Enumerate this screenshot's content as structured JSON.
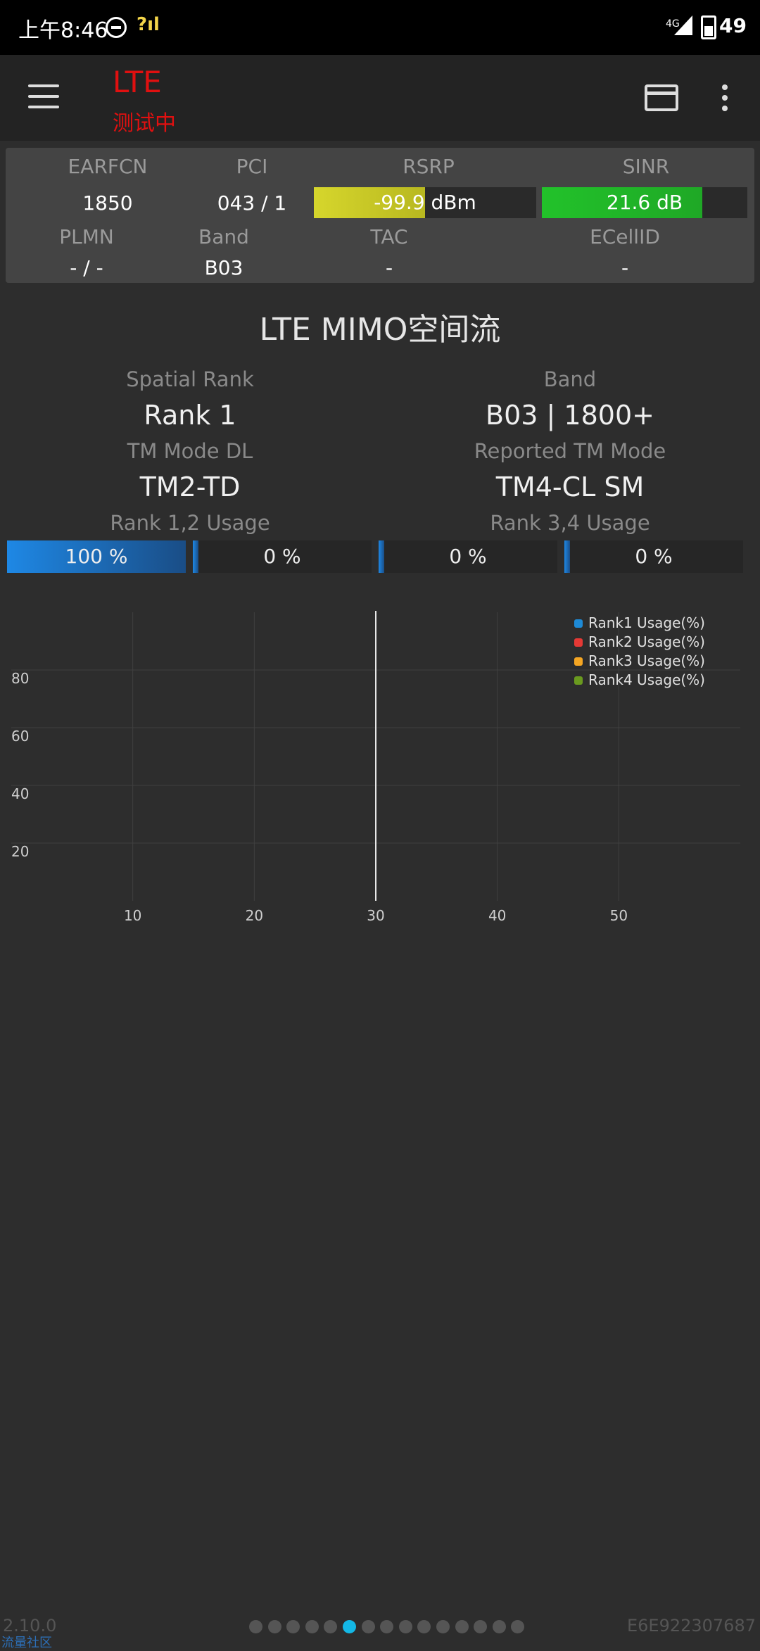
{
  "status_bar": {
    "time": "上午8:46",
    "signal_label": "?ıl",
    "network": "4G",
    "battery": "49"
  },
  "app_bar": {
    "title": "LTE",
    "subtitle": "测试中"
  },
  "info": {
    "earfcn_label": "EARFCN",
    "earfcn": "1850",
    "pci_label": "PCI",
    "pci": "043 / 1",
    "rsrp_label": "RSRP",
    "rsrp": "-99.9 dBm",
    "rsrp_level": 0.5,
    "rsrp_color": "#d6d62c",
    "sinr_label": "SINR",
    "sinr": "21.6 dB",
    "sinr_level": 0.78,
    "sinr_color": "#22c22a",
    "plmn_label": "PLMN",
    "plmn": "- / -",
    "band_label": "Band",
    "band": "B03",
    "tac_label": "TAC",
    "tac": "-",
    "ecellid_label": "ECellID",
    "ecellid": "-"
  },
  "mimo": {
    "title": "LTE MIMO空间流",
    "spatial_rank_label": "Spatial Rank",
    "spatial_rank": "Rank 1",
    "band_label": "Band",
    "band": "B03 | 1800+",
    "tm_mode_dl_label": "TM Mode DL",
    "tm_mode_dl": "TM2-TD",
    "reported_tm_label": "Reported TM Mode",
    "reported_tm": "TM4-CL SM",
    "rank12_label": "Rank 1,2 Usage",
    "rank34_label": "Rank 3,4 Usage",
    "usage": [
      {
        "text": "100 %",
        "value": 100
      },
      {
        "text": "0 %",
        "value": 0
      },
      {
        "text": "0 %",
        "value": 0
      },
      {
        "text": "0 %",
        "value": 0
      }
    ]
  },
  "chart_data": {
    "type": "line",
    "x_ticks": [
      "10",
      "20",
      "30",
      "40",
      "50"
    ],
    "y_ticks": [
      "20",
      "40",
      "60",
      "80"
    ],
    "xlim": [
      0,
      60
    ],
    "ylim": [
      0,
      100
    ],
    "grid": true,
    "legend_position": "top-right",
    "cursor_x": 30,
    "series": [
      {
        "name": "Rank1 Usage(%)",
        "color": "#1e8ad6",
        "values": []
      },
      {
        "name": "Rank2 Usage(%)",
        "color": "#e53935",
        "values": []
      },
      {
        "name": "Rank3 Usage(%)",
        "color": "#f5a623",
        "values": []
      },
      {
        "name": "Rank4 Usage(%)",
        "color": "#6a9a1f",
        "values": []
      }
    ]
  },
  "footer": {
    "version": "2.10.0",
    "brand": "流量社区",
    "device_id": "E6E922307687",
    "page_count": 15,
    "active_page": 5
  }
}
